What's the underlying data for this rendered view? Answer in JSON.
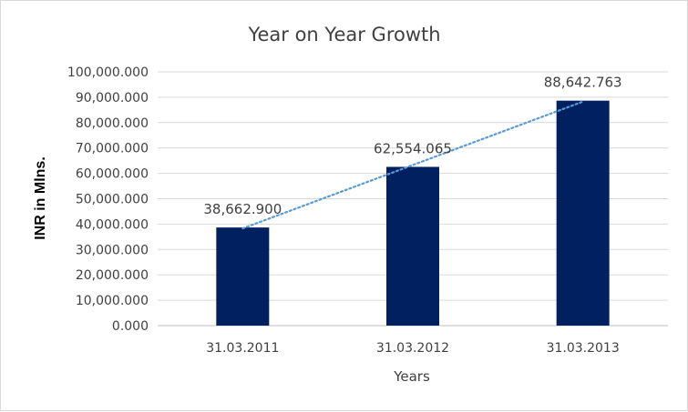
{
  "chart_data": {
    "type": "bar",
    "title": "Year on Year Growth",
    "xlabel": "Years",
    "ylabel": "INR in Mlns.",
    "categories": [
      "31.03.2011",
      "31.03.2012",
      "31.03.2013"
    ],
    "values": [
      38662.9,
      62554.065,
      88642.763
    ],
    "data_labels": [
      "38,662.900",
      "62,554.065",
      "88,642.763"
    ],
    "ylim": [
      0,
      100000
    ],
    "y_ticks": [
      0,
      10000,
      20000,
      30000,
      40000,
      50000,
      60000,
      70000,
      80000,
      90000,
      100000
    ],
    "y_tick_labels": [
      "0.000",
      "10,000.000",
      "20,000.000",
      "30,000.000",
      "40,000.000",
      "50,000.000",
      "60,000.000",
      "70,000.000",
      "80,000.000",
      "90,000.000",
      "100,000.000"
    ],
    "grid": true,
    "trendline": "linear",
    "colors": {
      "bar": "#002060",
      "trendline": "#5b9bd5",
      "grid": "#d9d9d9",
      "text": "#404040"
    }
  }
}
